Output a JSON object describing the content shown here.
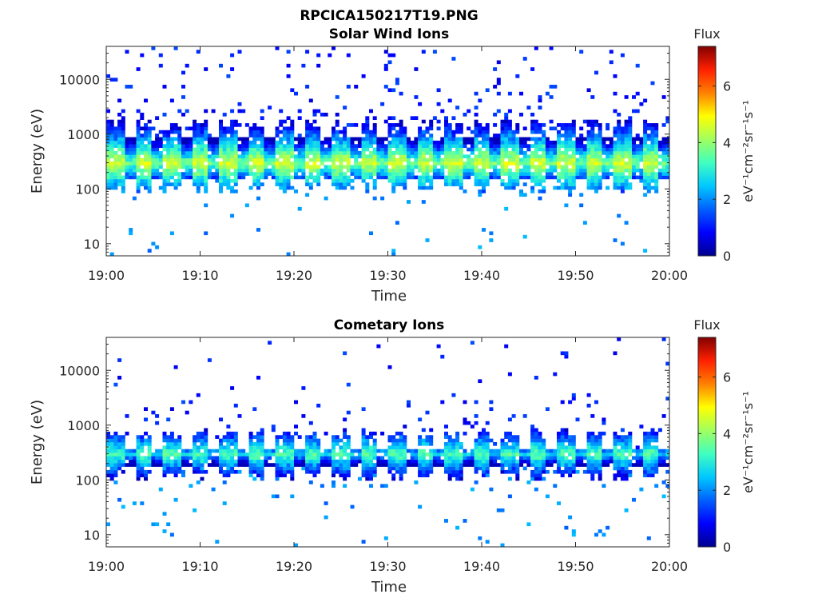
{
  "figure": {
    "title": "RPCICA150217T19.PNG"
  },
  "colormap": [
    "#00008f",
    "#0000ff",
    "#0060ff",
    "#00c8ff",
    "#40ffbf",
    "#a0ff60",
    "#ffff00",
    "#ff8000",
    "#ff2000",
    "#800000"
  ],
  "chart_data": [
    {
      "type": "heatmap",
      "title": "Solar Wind Ions",
      "xlabel": "Time",
      "ylabel": "Energy (eV)",
      "x_range": [
        "19:00",
        "20:00"
      ],
      "x_ticks": [
        "19:00",
        "19:10",
        "19:20",
        "19:30",
        "19:40",
        "19:50",
        "20:00"
      ],
      "y_scale": "log",
      "y_range": [
        6,
        40000
      ],
      "y_ticks": [
        10,
        100,
        1000,
        10000
      ],
      "y_tick_labels": [
        "10",
        "100",
        "1000",
        "10000"
      ],
      "colorbar": {
        "title": "Flux",
        "label_html": "eV⁻¹cm⁻²sr⁻¹s⁻¹",
        "range": [
          0,
          7.4
        ],
        "ticks": [
          "0",
          "2",
          "4",
          "6"
        ]
      },
      "main_band": {
        "low_eV": 110,
        "high_eV": 1500,
        "peak_eV": 300,
        "peak_flux": 4.6
      },
      "sweep_period_minutes": 3.0,
      "sparse_high_energy": true,
      "sparse_low_energy": true
    },
    {
      "type": "heatmap",
      "title": "Cometary Ions",
      "xlabel": "Time",
      "ylabel": "Energy (eV)",
      "x_range": [
        "19:00",
        "20:00"
      ],
      "x_ticks": [
        "19:00",
        "19:10",
        "19:20",
        "19:30",
        "19:40",
        "19:50",
        "20:00"
      ],
      "y_scale": "log",
      "y_range": [
        6,
        40000
      ],
      "y_ticks": [
        10,
        100,
        1000,
        10000
      ],
      "y_tick_labels": [
        "10",
        "100",
        "1000",
        "10000"
      ],
      "colorbar": {
        "title": "Flux",
        "label_html": "eV⁻¹cm⁻²sr⁻¹s⁻¹",
        "range": [
          0,
          7.4
        ],
        "ticks": [
          "0",
          "2",
          "4",
          "6"
        ]
      },
      "main_band": {
        "low_eV": 130,
        "high_eV": 700,
        "peak_eV": 300,
        "peak_flux": 3.5
      },
      "sweep_period_minutes": 3.0,
      "sparse_high_energy": true,
      "sparse_low_energy": true
    }
  ]
}
